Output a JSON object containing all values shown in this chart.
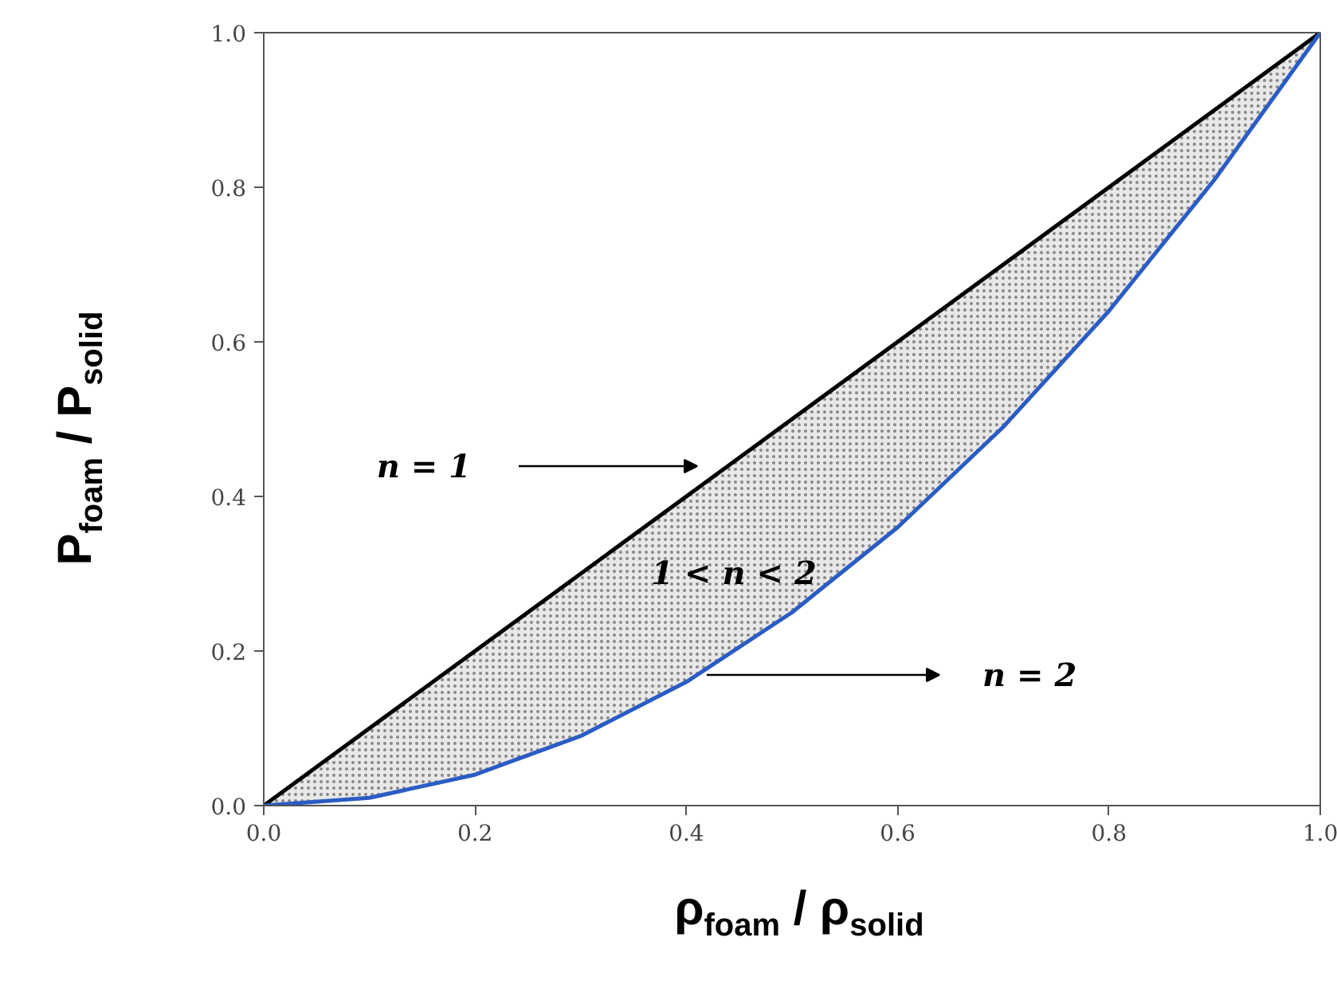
{
  "chart_data": {
    "type": "line",
    "xlabel": "ρ$_{foam}$ / ρ$_{solid}$",
    "ylabel": "P$_{foam}$ / P$_{solid}$",
    "x": [
      0,
      0.1,
      0.2,
      0.3,
      0.4,
      0.5,
      0.6,
      0.7,
      0.8,
      0.9,
      1.0
    ],
    "series": [
      {
        "color": "#000000",
        "values": [
          0,
          0.1,
          0.2,
          0.3,
          0.4,
          0.5,
          0.6,
          0.7,
          0.8,
          0.9,
          1.0
        ],
        "lower": [
          0,
          0.01,
          0.04,
          0.09,
          0.16,
          0.25,
          0.36,
          0.49,
          0.64,
          0.81,
          1.0
        ],
        "upper": [
          0,
          0.1,
          0.2,
          0.3,
          0.4,
          0.5,
          0.6,
          0.7,
          0.8,
          0.9,
          1.0
        ]
      },
      {
        "color": "#2a5cc4",
        "values": [
          0,
          0.01,
          0.04,
          0.09,
          0.16,
          0.25,
          0.36,
          0.49,
          0.64,
          0.81,
          1.0
        ]
      }
    ],
    "annotations": [
      "n = 1",
      "1 < n < 2",
      "n = 2"
    ],
    "xlim": [
      0,
      1
    ],
    "ylim": [
      0,
      1
    ],
    "xticks": [
      {
        "value": 0,
        "label": "0.0"
      },
      {
        "value": 0.2,
        "label": "0.2"
      },
      {
        "value": 0.4,
        "label": "0.4"
      },
      {
        "value": 0.6,
        "label": "0.6"
      },
      {
        "value": 0.8,
        "label": "0.8"
      },
      {
        "value": 1,
        "label": "1.0"
      }
    ],
    "yticks": [
      {
        "value": 0,
        "label": "0.0"
      },
      {
        "value": 0.2,
        "label": "0.2"
      },
      {
        "value": 0.4,
        "label": "0.4"
      },
      {
        "value": 0.6,
        "label": "0.6"
      },
      {
        "value": 0.8,
        "label": "0.8"
      },
      {
        "value": 1,
        "label": "1.0"
      }
    ],
    "grid": false,
    "marker": "none",
    "line_style": "solid"
  }
}
